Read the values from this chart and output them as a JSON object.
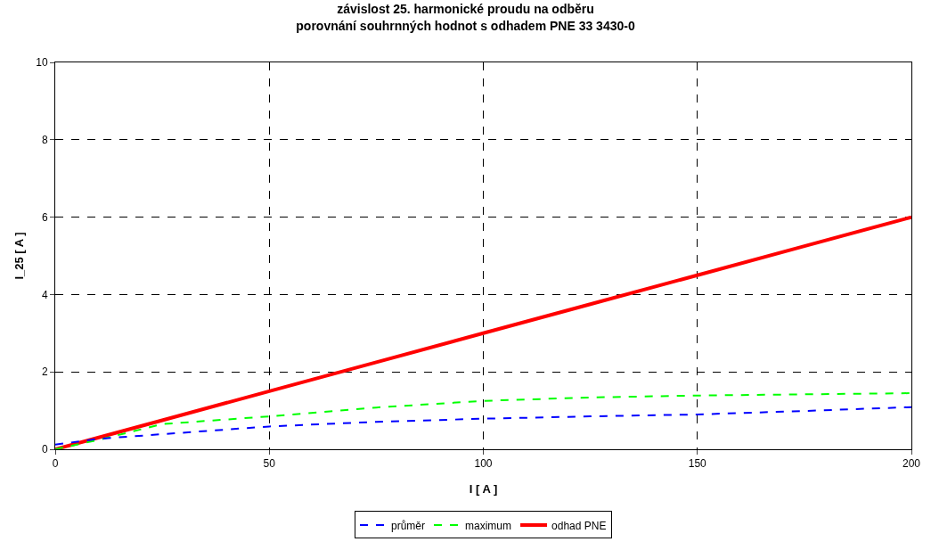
{
  "chart_data": {
    "type": "line",
    "title": "závislost 25. harmonické proudu na odběru\nporovnání souhrnných hodnot s odhadem PNE 33 3430-0",
    "xlabel": "I [ A ]",
    "ylabel": "I_25 [ A ]",
    "x": [
      0,
      10,
      25,
      50,
      75,
      100,
      125,
      150,
      175,
      200
    ],
    "series": [
      {
        "name": "průměr",
        "color": "#0000ff",
        "line_style": "dashed",
        "values": [
          0.12,
          0.27,
          0.39,
          0.59,
          0.71,
          0.79,
          0.85,
          0.9,
          0.99,
          1.09
        ]
      },
      {
        "name": "maximum",
        "color": "#00ff00",
        "line_style": "dashed",
        "values": [
          0,
          0.24,
          0.65,
          0.85,
          1.08,
          1.25,
          1.34,
          1.39,
          1.42,
          1.45
        ]
      },
      {
        "name": "odhad PNE",
        "color": "#ff0000",
        "line_style": "solid",
        "values": [
          0,
          0.3,
          0.75,
          1.5,
          2.25,
          3,
          3.75,
          4.5,
          5.25,
          6
        ]
      }
    ],
    "xlim": [
      0,
      200
    ],
    "xticks": [
      0,
      50,
      100,
      150,
      200
    ],
    "ylim": [
      0,
      10
    ],
    "yticks": [
      0,
      2,
      4,
      6,
      8,
      10
    ],
    "grid": true,
    "legend": "bottom",
    "marker": "none"
  }
}
